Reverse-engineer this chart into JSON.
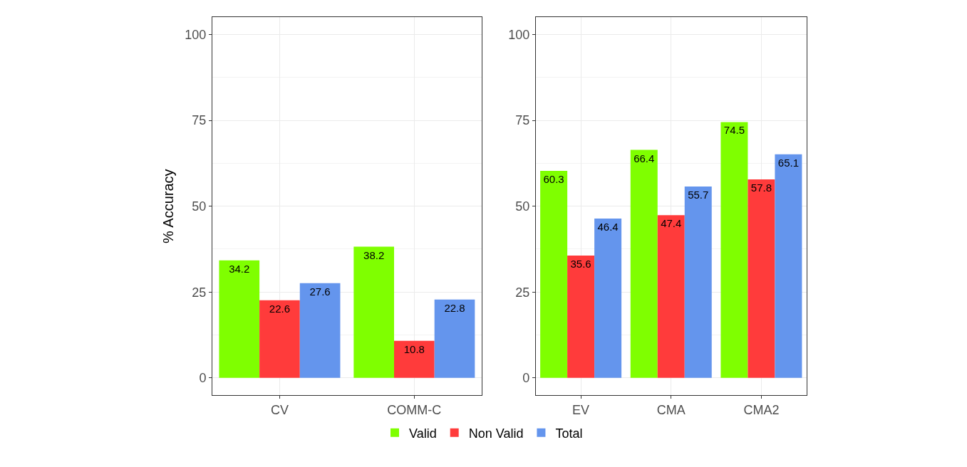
{
  "chart_data": [
    {
      "type": "bar",
      "ylabel": "% Accuracy",
      "categories": [
        "CV",
        "COMM-C"
      ],
      "series": [
        {
          "name": "Valid",
          "color": "#7fff00",
          "values": [
            34.2,
            38.2
          ]
        },
        {
          "name": "Non Valid",
          "color": "#ff3b3b",
          "values": [
            22.6,
            10.8
          ]
        },
        {
          "name": "Total",
          "color": "#6495ed",
          "values": [
            27.6,
            22.8
          ]
        }
      ],
      "ylim": [
        -5,
        105
      ],
      "yticks": [
        0,
        25,
        50,
        75,
        100
      ],
      "grid": true,
      "data_labels": true,
      "legend": "bottom"
    },
    {
      "type": "bar",
      "categories": [
        "EV",
        "CMA",
        "CMA2"
      ],
      "series": [
        {
          "color": "#7fff00",
          "values": [
            60.3,
            66.4,
            74.5
          ]
        },
        {
          "color": "#ff3b3b",
          "values": [
            35.6,
            47.4,
            57.8
          ]
        },
        {
          "color": "#6495ed",
          "values": [
            46.4,
            55.7,
            65.1
          ]
        }
      ],
      "ylim": [
        -5,
        105
      ],
      "yticks": [
        0,
        25,
        50,
        75,
        100
      ],
      "grid": true,
      "data_labels": true
    }
  ]
}
